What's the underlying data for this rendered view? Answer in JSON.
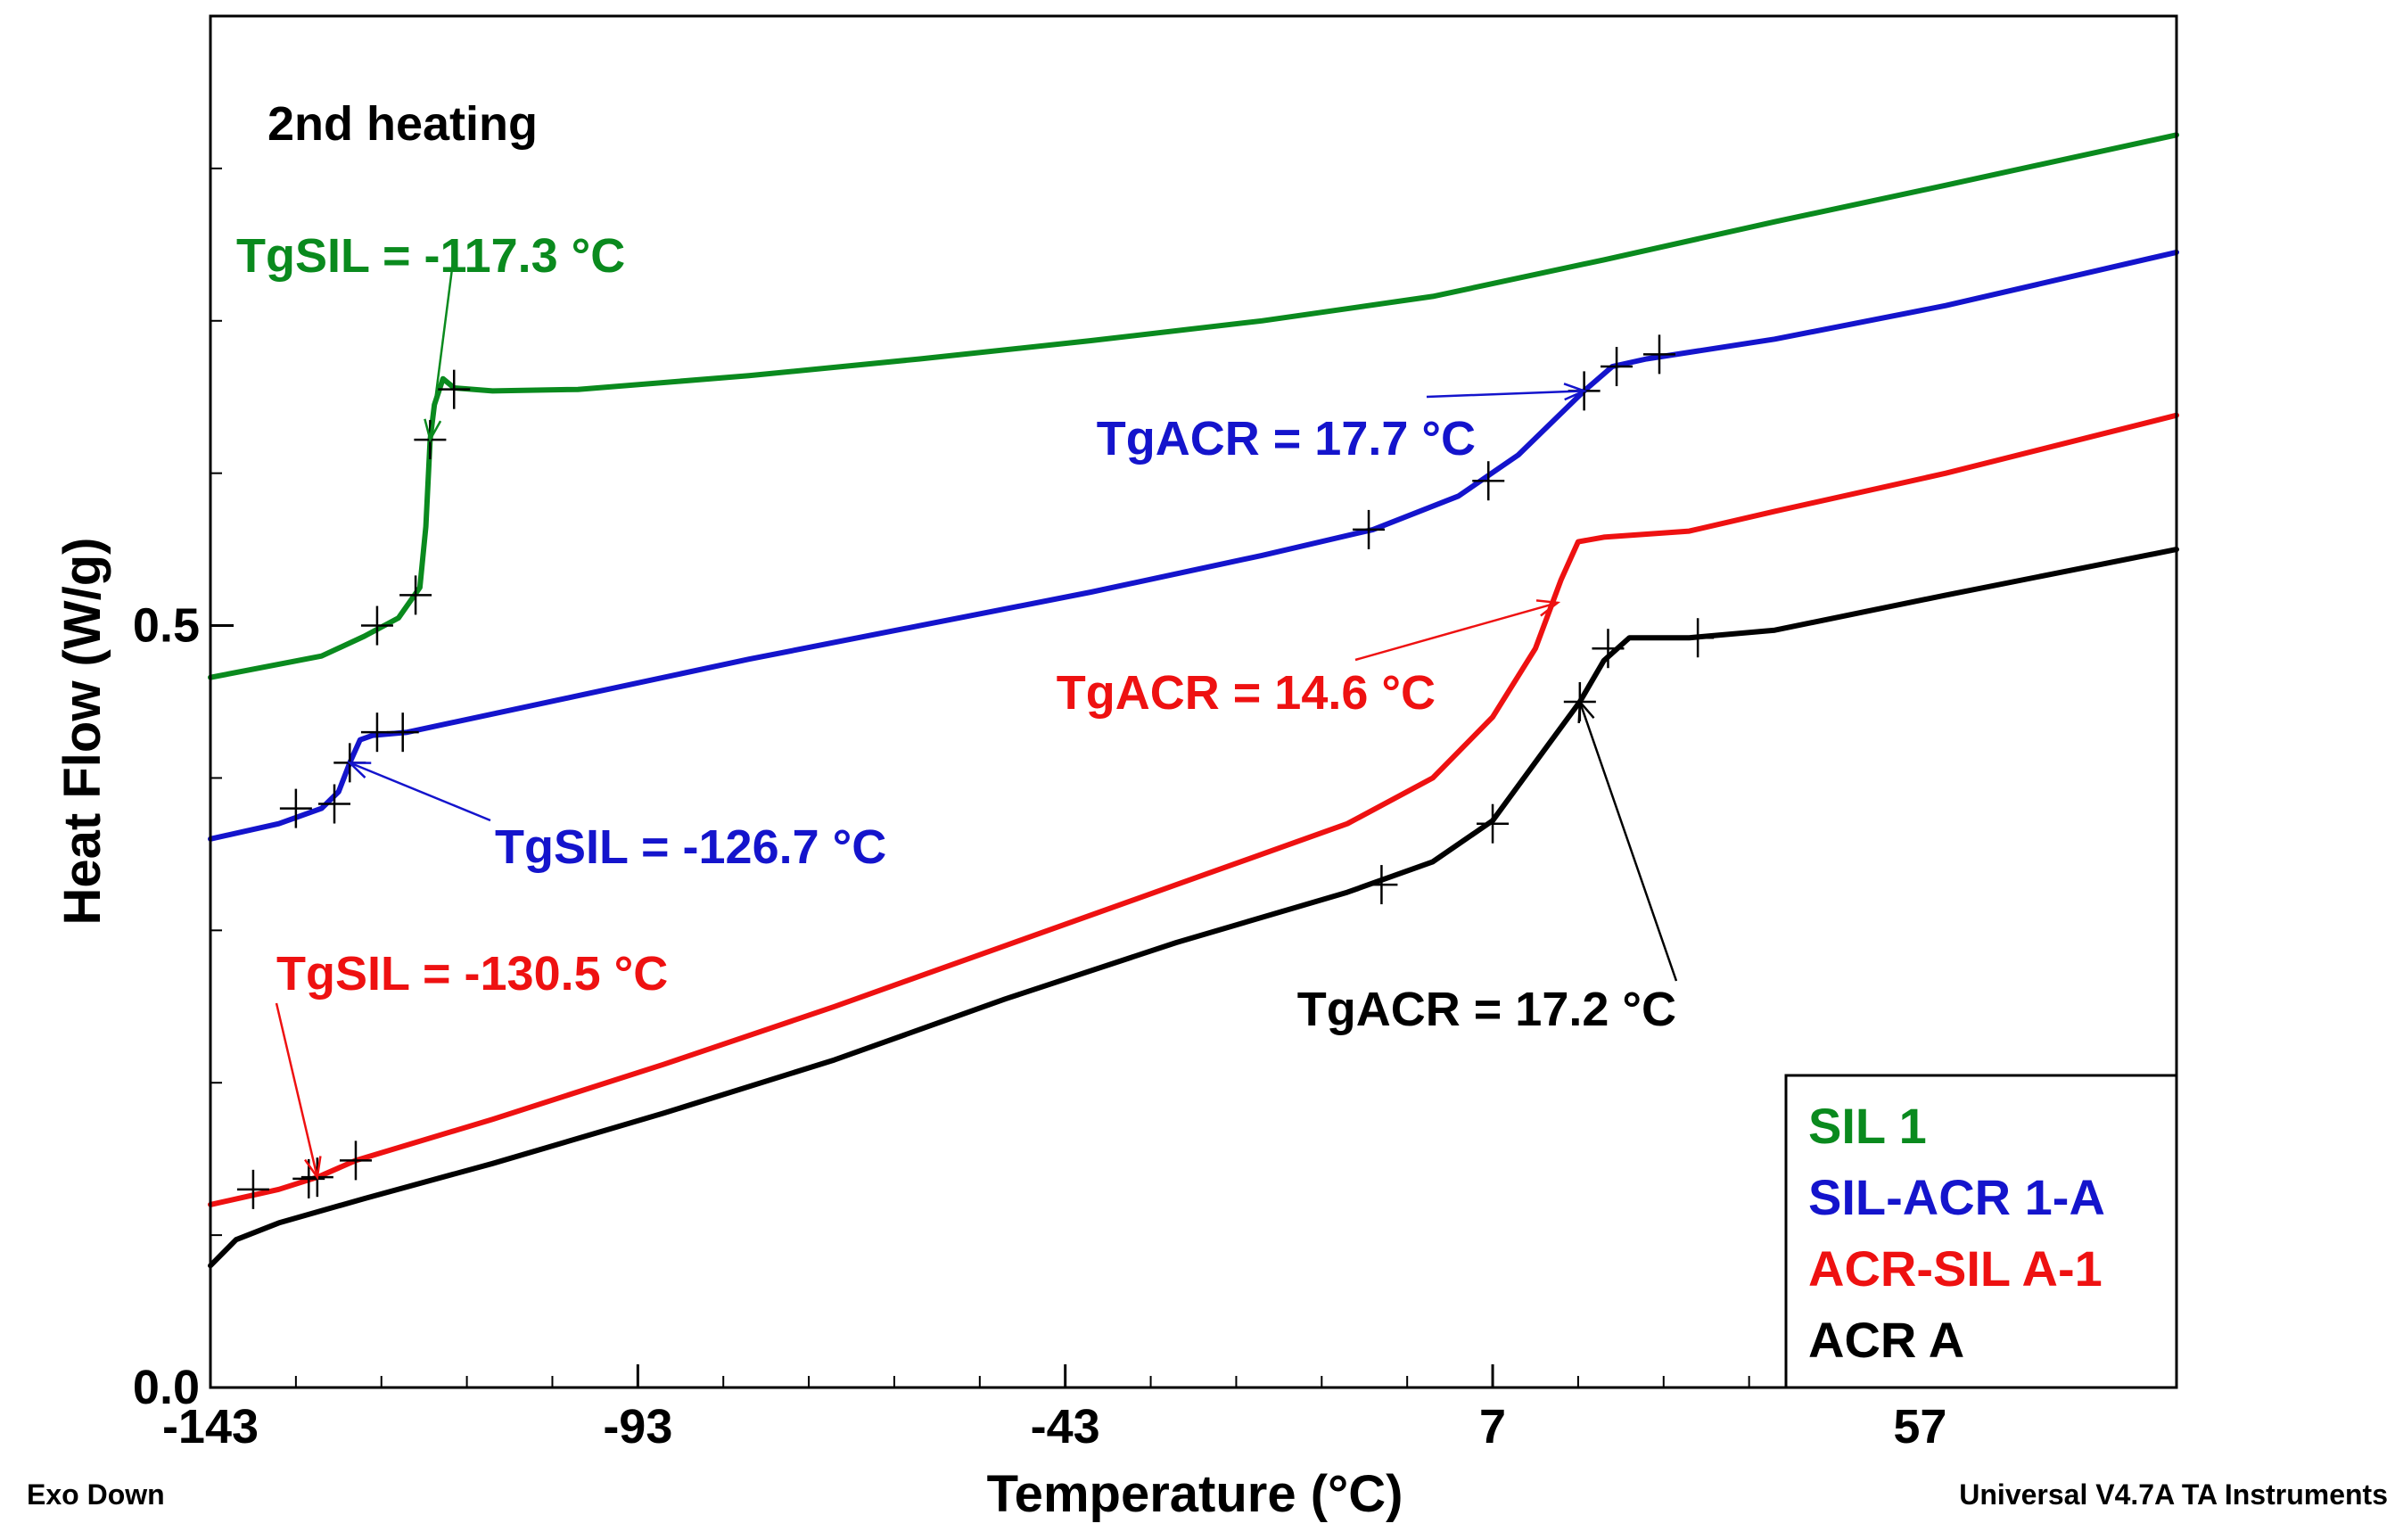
{
  "chart_data": {
    "type": "line",
    "title": "2nd heating",
    "xlabel": "Temperature (°C)",
    "ylabel": "Heat Flow (W/g)",
    "xlim": [
      -143,
      87
    ],
    "ylim": [
      0.0,
      0.9
    ],
    "x_ticks": [
      -143,
      -93,
      -43,
      7,
      57
    ],
    "x_tick_labels": [
      "-143",
      "-93",
      "-43",
      "7",
      "57"
    ],
    "y_ticks": [
      0.0,
      0.5
    ],
    "y_tick_labels": [
      "0.0",
      "0.5"
    ],
    "footer_left": "Exo Down",
    "footer_right": "Universal V4.7A TA Instruments",
    "legend": {
      "position": "bottom-right",
      "entries": [
        "SIL 1",
        "SIL-ACR 1-A",
        "ACR-SIL A-1",
        "ACR A"
      ]
    },
    "series": [
      {
        "name": "SIL 1",
        "color": "#0a8a1e",
        "points": [
          [
            -143,
            0.466
          ],
          [
            -130,
            0.48
          ],
          [
            -125,
            0.493
          ],
          [
            -121,
            0.505
          ],
          [
            -118.5,
            0.525
          ],
          [
            -117.8,
            0.565
          ],
          [
            -117.3,
            0.622
          ],
          [
            -116.8,
            0.645
          ],
          [
            -115.8,
            0.662
          ],
          [
            -114.5,
            0.656
          ],
          [
            -110,
            0.654
          ],
          [
            -100,
            0.655
          ],
          [
            -80,
            0.664
          ],
          [
            -60,
            0.675
          ],
          [
            -40,
            0.687
          ],
          [
            -20,
            0.7
          ],
          [
            0,
            0.716
          ],
          [
            20,
            0.74
          ],
          [
            40,
            0.765
          ],
          [
            60,
            0.789
          ],
          [
            87,
            0.822
          ]
        ],
        "marks": [
          [
            -123.5,
            0.5
          ],
          [
            -119,
            0.52
          ],
          [
            -117.3,
            0.622
          ],
          [
            -114.5,
            0.655
          ]
        ]
      },
      {
        "name": "SIL-ACR 1-A",
        "color": "#1414cc",
        "points": [
          [
            -143,
            0.36
          ],
          [
            -135,
            0.37
          ],
          [
            -130,
            0.38
          ],
          [
            -128,
            0.391
          ],
          [
            -126.7,
            0.41
          ],
          [
            -125.5,
            0.425
          ],
          [
            -124,
            0.428
          ],
          [
            -120,
            0.43
          ],
          [
            -100,
            0.454
          ],
          [
            -80,
            0.478
          ],
          [
            -60,
            0.5
          ],
          [
            -40,
            0.522
          ],
          [
            -20,
            0.546
          ],
          [
            -7,
            0.563
          ],
          [
            3,
            0.585
          ],
          [
            10,
            0.612
          ],
          [
            17.7,
            0.654
          ],
          [
            21,
            0.67
          ],
          [
            25,
            0.675
          ],
          [
            40,
            0.688
          ],
          [
            60,
            0.71
          ],
          [
            87,
            0.745
          ]
        ],
        "marks": [
          [
            -133,
            0.38
          ],
          [
            -128.5,
            0.383
          ],
          [
            -126.7,
            0.41
          ],
          [
            -123.5,
            0.43
          ],
          [
            -120.5,
            0.43
          ],
          [
            -7.5,
            0.563
          ],
          [
            6.5,
            0.595
          ],
          [
            17.7,
            0.654
          ],
          [
            21.5,
            0.67
          ],
          [
            26.5,
            0.678
          ]
        ]
      },
      {
        "name": "ACR-SIL A-1",
        "color": "#ee1111",
        "points": [
          [
            -143,
            0.12
          ],
          [
            -135,
            0.13
          ],
          [
            -130.5,
            0.138
          ],
          [
            -126,
            0.149
          ],
          [
            -110,
            0.176
          ],
          [
            -90,
            0.212
          ],
          [
            -70,
            0.25
          ],
          [
            -50,
            0.29
          ],
          [
            -30,
            0.33
          ],
          [
            -10,
            0.37
          ],
          [
            0,
            0.4
          ],
          [
            7,
            0.44
          ],
          [
            12,
            0.485
          ],
          [
            15,
            0.53
          ],
          [
            17,
            0.555
          ],
          [
            20,
            0.558
          ],
          [
            30,
            0.562
          ],
          [
            40,
            0.575
          ],
          [
            60,
            0.6
          ],
          [
            87,
            0.638
          ]
        ],
        "marks": [
          [
            -138,
            0.13
          ],
          [
            -131.5,
            0.137
          ],
          [
            -130.5,
            0.138
          ],
          [
            -126,
            0.149
          ]
        ]
      },
      {
        "name": "ACR A",
        "color": "#000000",
        "points": [
          [
            -143,
            0.08
          ],
          [
            -140,
            0.097
          ],
          [
            -135,
            0.108
          ],
          [
            -125,
            0.124
          ],
          [
            -110,
            0.147
          ],
          [
            -90,
            0.18
          ],
          [
            -70,
            0.215
          ],
          [
            -50,
            0.255
          ],
          [
            -30,
            0.292
          ],
          [
            -10,
            0.325
          ],
          [
            0,
            0.345
          ],
          [
            7,
            0.372
          ],
          [
            13,
            0.418
          ],
          [
            17.2,
            0.45
          ],
          [
            20,
            0.477
          ],
          [
            23,
            0.492
          ],
          [
            30,
            0.492
          ],
          [
            40,
            0.497
          ],
          [
            60,
            0.52
          ],
          [
            87,
            0.55
          ]
        ],
        "marks": [
          [
            -6,
            0.33
          ],
          [
            7,
            0.37
          ],
          [
            17.2,
            0.45
          ],
          [
            20.5,
            0.485
          ],
          [
            31,
            0.492
          ]
        ]
      }
    ],
    "annotations": [
      {
        "text": "TgSIL = -117.3 °C",
        "color": "#0a8a1e",
        "x": -117.3,
        "y": 0.622
      },
      {
        "text": "TgACR = 17.7 °C",
        "color": "#1414cc",
        "x": 17.7,
        "y": 0.654
      },
      {
        "text": "TgSIL = -126.7 °C",
        "color": "#1414cc",
        "x": -126.7,
        "y": 0.41
      },
      {
        "text": "TgACR = 14.6 °C",
        "color": "#ee1111",
        "x": 14.6,
        "y": 0.515
      },
      {
        "text": "TgSIL = -130.5 °C",
        "color": "#ee1111",
        "x": -130.5,
        "y": 0.138
      },
      {
        "text": "TgACR = 17.2 °C",
        "color": "#000000",
        "x": 17.2,
        "y": 0.45
      }
    ]
  }
}
